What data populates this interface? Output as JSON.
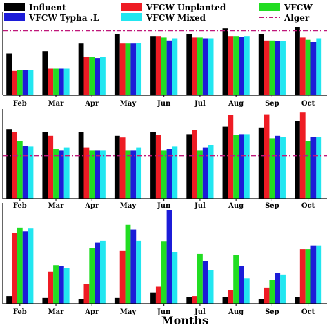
{
  "chart_data": {
    "type": "bar",
    "xlabel": "Months",
    "categories": [
      "Feb",
      "Mar",
      "Apr",
      "May",
      "Jun",
      "Jul",
      "Aug",
      "Sep",
      "Oct"
    ],
    "legend": [
      {
        "name": "Influent",
        "color": "#000000",
        "marker": "box"
      },
      {
        "name": "VFCW Unplanted",
        "color": "#ee1c24",
        "marker": "box"
      },
      {
        "name": "VFCW",
        "color": "#22dd22",
        "marker": "box"
      },
      {
        "name": "VFCW  Typha .L",
        "color": "#1c1cd8",
        "marker": "box"
      },
      {
        "name": "VFCW Mixed",
        "color": "#22e6f0",
        "marker": "box"
      },
      {
        "name": "Alger",
        "color": "#c0187a",
        "marker": "dashdot"
      }
    ],
    "series_colors": [
      "#000000",
      "#ee1c24",
      "#22dd22",
      "#1c1cd8",
      "#22e6f0"
    ],
    "limit_color": "#c0187a",
    "panels": [
      {
        "ylim": [
          0,
          100
        ],
        "limit": 85,
        "values": [
          [
            55,
            32,
            33,
            33,
            33
          ],
          [
            58,
            35,
            35,
            35,
            35
          ],
          [
            68,
            50,
            50,
            49,
            50
          ],
          [
            80,
            68,
            68,
            68,
            69
          ],
          [
            78,
            78,
            76,
            72,
            75
          ],
          [
            80,
            76,
            76,
            75,
            75
          ],
          [
            88,
            78,
            78,
            77,
            78
          ],
          [
            80,
            72,
            72,
            71,
            71
          ],
          [
            90,
            76,
            73,
            70,
            75
          ]
        ]
      },
      {
        "ylim": [
          0,
          100
        ],
        "limit": 52,
        "values": [
          [
            84,
            80,
            70,
            64,
            63
          ],
          [
            80,
            76,
            60,
            58,
            62
          ],
          [
            80,
            62,
            58,
            58,
            58
          ],
          [
            76,
            74,
            58,
            58,
            62
          ],
          [
            80,
            77,
            58,
            60,
            63
          ],
          [
            78,
            83,
            58,
            62,
            65
          ],
          [
            87,
            101,
            77,
            78,
            78
          ],
          [
            86,
            102,
            73,
            76,
            75
          ],
          [
            94,
            104,
            70,
            75,
            75
          ]
        ]
      },
      {
        "ylim": [
          0,
          100
        ],
        "limit": null,
        "values": [
          [
            8,
            75,
            81,
            77,
            80
          ],
          [
            6,
            34,
            41,
            40,
            38
          ],
          [
            5,
            21,
            59,
            65,
            67
          ],
          [
            6,
            56,
            84,
            79,
            67
          ],
          [
            12,
            18,
            66,
            100,
            55
          ],
          [
            7,
            8,
            53,
            45,
            36
          ],
          [
            7,
            14,
            52,
            40,
            27
          ],
          [
            5,
            17,
            25,
            33,
            31
          ],
          [
            7,
            58,
            58,
            62,
            62
          ]
        ]
      }
    ]
  }
}
